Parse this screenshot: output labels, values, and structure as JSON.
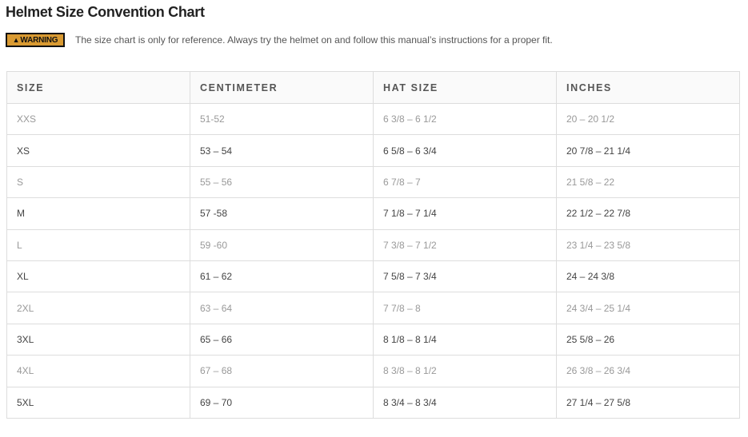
{
  "title": "Helmet Size Convention Chart",
  "warning": {
    "badge_label": "WARNING",
    "icon": "warning-triangle-icon",
    "badge_color": "#d99a32",
    "text": "The size chart is only for reference. Always try the helmet on and follow this manual’s instructions for a proper fit."
  },
  "table": {
    "headers": [
      "SIZE",
      "CENTIMETER",
      "HAT SIZE",
      "INCHES"
    ],
    "rows": [
      [
        "XXS",
        "51-52",
        "6 3/8 – 6 1/2",
        "20 – 20 1/2"
      ],
      [
        "XS",
        "53 – 54",
        "6 5/8 – 6 3/4",
        "20 7/8 – 21 1/4"
      ],
      [
        "S",
        "55 – 56",
        "6 7/8 – 7",
        "21 5/8 – 22"
      ],
      [
        "M",
        "57 -58",
        "7 1/8 – 7 1/4",
        "22 1/2 – 22 7/8"
      ],
      [
        "L",
        "59 -60",
        "7 3/8 – 7 1/2",
        "23 1/4 – 23 5/8"
      ],
      [
        "XL",
        "61 – 62",
        "7 5/8 – 7 3/4",
        "24 – 24 3/8"
      ],
      [
        "2XL",
        "63 – 64",
        "7 7/8 – 8",
        "24 3/4 – 25 1/4"
      ],
      [
        "3XL",
        "65 – 66",
        "8 1/8 – 8 1/4",
        "25 5/8 – 26"
      ],
      [
        "4XL",
        "67 – 68",
        "8 3/8 – 8 1/2",
        "26 3/8 – 26 3/4"
      ],
      [
        "5XL",
        "69 – 70",
        "8 3/4 – 8 3/4",
        "27 1/4 – 27 5/8"
      ]
    ]
  }
}
